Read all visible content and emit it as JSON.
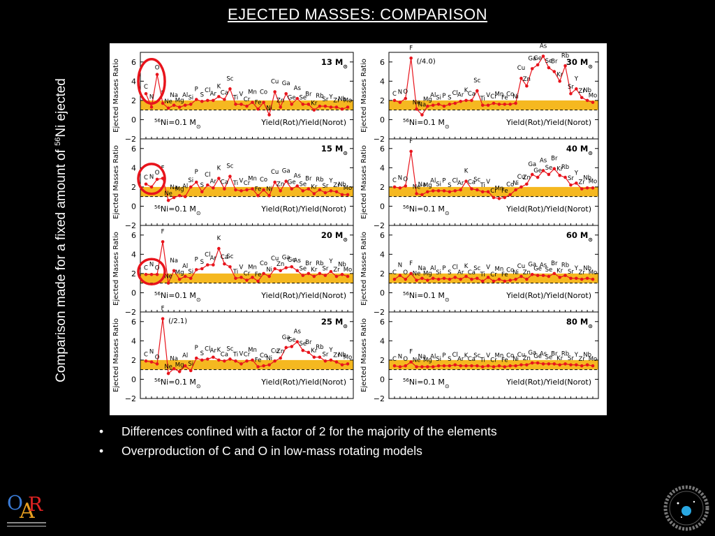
{
  "slide": {
    "title": "EJECTED MASSES: COMPARISON",
    "side_label_pre": "Comparison made for a fixed amount of ",
    "side_label_sup": "56",
    "side_label_post": "Ni ejected",
    "bullets": [
      "Differences confined with a factor of 2 for the majority of the elements",
      "Overproduction of C and O in low-mass rotating  models"
    ]
  },
  "colors": {
    "background": "#000000",
    "series": "#e8141c",
    "band": "#f5b820",
    "highlight": "#e8141c"
  },
  "chart_data": {
    "type": "line",
    "elements": [
      "C",
      "N",
      "O",
      "F",
      "Ne",
      "Na",
      "Mg",
      "Al",
      "Si",
      "P",
      "S",
      "Cl",
      "Ar",
      "K",
      "Ca",
      "Sc",
      "Ti",
      "V",
      "Cr",
      "Mn",
      "Fe",
      "Co",
      "Ni",
      "Cu",
      "Zn",
      "Ga",
      "Ge",
      "As",
      "Se",
      "Br",
      "Kr",
      "Rb",
      "Sr",
      "Y",
      "Zr",
      "Nb",
      "Mo"
    ],
    "ylabel": "Ejected Masses Ratio",
    "ylim": [
      -2,
      7
    ],
    "yticks": [
      -2,
      0,
      2,
      4,
      6
    ],
    "band": [
      1,
      2
    ],
    "reference_line": 1,
    "note": "Yield(Rot)/Yield(Norot)",
    "panels": [
      {
        "mass": "13",
        "ni_note": "=0.1 M",
        "column": "left",
        "row": 0,
        "highlight": [
          "C",
          "O"
        ],
        "values": [
          2.7,
          1.3,
          4.7,
          1.7,
          1.2,
          1.5,
          1.3,
          1.5,
          1.6,
          2.1,
          1.9,
          2.0,
          2.0,
          2.4,
          2.1,
          3.2,
          1.6,
          1.6,
          1.4,
          1.8,
          1.1,
          1.8,
          0.5,
          2.9,
          1.3,
          2.7,
          1.6,
          2.2,
          1.6,
          1.6,
          1.0,
          1.4,
          1.4,
          1.3,
          1.3,
          1.1,
          1.3
        ]
      },
      {
        "mass": "30",
        "ni_note": "=0.1 M",
        "column": "right",
        "row": 0,
        "annotation": "(/4.0)",
        "values": [
          2.0,
          1.8,
          2.2,
          6.4,
          1.1,
          0.5,
          1.4,
          1.5,
          1.6,
          1.4,
          1.6,
          1.7,
          1.9,
          2.0,
          2.0,
          3.0,
          1.5,
          1.5,
          1.7,
          1.6,
          1.6,
          1.6,
          1.7,
          4.3,
          3.5,
          5.3,
          5.7,
          6.6,
          5.4,
          5.0,
          4.0,
          5.6,
          2.7,
          3.2,
          2.3,
          2.0,
          1.8
        ]
      },
      {
        "mass": "15",
        "ni_note": "=0.1 M",
        "column": "left",
        "row": 1,
        "highlight": [
          "C",
          "O"
        ],
        "values": [
          2.3,
          2.0,
          2.8,
          2.9,
          0.6,
          0.9,
          1.1,
          1.0,
          2.0,
          2.5,
          1.5,
          2.2,
          1.9,
          2.9,
          1.8,
          3.1,
          1.7,
          1.6,
          1.7,
          1.8,
          1.1,
          1.7,
          1.1,
          2.5,
          1.6,
          2.6,
          1.8,
          2.1,
          1.6,
          1.8,
          1.3,
          1.7,
          1.4,
          1.6,
          1.5,
          1.2,
          1.2
        ]
      },
      {
        "mass": "40",
        "ni_note": "=0.1 M",
        "column": "right",
        "row": 1,
        "values": [
          2.0,
          1.9,
          2.1,
          5.7,
          1.3,
          1.2,
          1.5,
          1.6,
          1.6,
          1.6,
          1.5,
          1.6,
          1.7,
          2.6,
          1.8,
          1.7,
          1.5,
          1.5,
          0.9,
          0.8,
          0.9,
          1.2,
          1.7,
          2.0,
          2.3,
          3.3,
          3.0,
          3.7,
          3.3,
          3.9,
          3.2,
          3.0,
          2.2,
          2.4,
          1.8,
          1.9,
          1.9
        ]
      },
      {
        "mass": "20",
        "ni_note": "=0.1 M",
        "column": "left",
        "row": 2,
        "highlight": [
          "C",
          "N",
          "O"
        ],
        "values": [
          1.9,
          1.9,
          1.9,
          5.3,
          1.0,
          2.3,
          1.4,
          1.7,
          1.5,
          2.4,
          2.5,
          2.9,
          2.9,
          4.6,
          3.0,
          2.7,
          1.5,
          1.6,
          1.3,
          1.6,
          1.2,
          2.0,
          1.7,
          2.5,
          2.3,
          2.6,
          2.7,
          2.3,
          1.8,
          2.0,
          1.7,
          2.0,
          1.8,
          2.2,
          1.7,
          1.9,
          1.7
        ]
      },
      {
        "mass": "60",
        "ni_note": "=0.1 M",
        "column": "right",
        "row": 2,
        "values": [
          1.4,
          1.8,
          1.4,
          2.0,
          1.3,
          1.5,
          1.3,
          1.5,
          1.4,
          1.5,
          1.4,
          1.6,
          1.4,
          1.7,
          1.4,
          1.5,
          1.2,
          1.6,
          1.2,
          1.4,
          1.2,
          1.3,
          1.4,
          1.7,
          1.4,
          1.9,
          1.8,
          1.8,
          1.7,
          2.0,
          1.6,
          1.8,
          1.5,
          1.5,
          1.4,
          1.5,
          1.4
        ]
      },
      {
        "mass": "25",
        "ni_note": "=0.1 M",
        "column": "left",
        "row": 3,
        "annotation": "(/2.1)",
        "values": [
          1.9,
          1.8,
          1.6,
          6.3,
          0.6,
          1.1,
          0.8,
          1.4,
          0.9,
          2.2,
          2.0,
          2.1,
          2.3,
          2.0,
          1.9,
          2.1,
          1.9,
          1.6,
          1.9,
          2.0,
          1.3,
          1.4,
          1.5,
          1.9,
          2.2,
          3.3,
          3.4,
          3.9,
          3.0,
          2.8,
          2.3,
          2.3,
          1.9,
          2.0,
          1.8,
          1.5,
          1.6
        ]
      },
      {
        "mass": "80",
        "ni_note": "=0.1 M",
        "column": "right",
        "row": 3,
        "values": [
          1.4,
          1.3,
          1.4,
          1.8,
          1.3,
          1.3,
          1.3,
          1.3,
          1.4,
          1.4,
          1.4,
          1.5,
          1.4,
          1.4,
          1.4,
          1.4,
          1.3,
          1.4,
          1.3,
          1.4,
          1.3,
          1.4,
          1.4,
          1.5,
          1.5,
          1.7,
          1.7,
          1.6,
          1.6,
          1.6,
          1.5,
          1.6,
          1.5,
          1.5,
          1.4,
          1.5,
          1.4
        ]
      }
    ]
  }
}
